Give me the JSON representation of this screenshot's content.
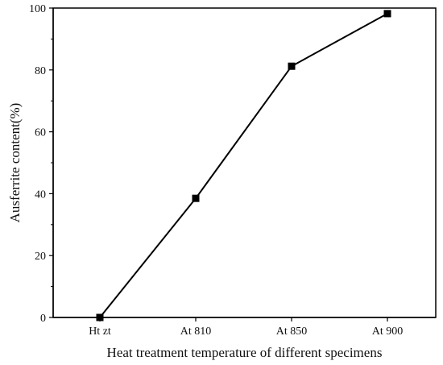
{
  "chart_data": {
    "type": "line",
    "title": "",
    "xlabel": "Heat treatment temperature of different specimens",
    "ylabel": "Ausferrite content(%)",
    "categories": [
      "Ht zt",
      "At 810",
      "At 850",
      "At 900"
    ],
    "series": [
      {
        "values": [
          0,
          38.5,
          81.2,
          98.2
        ]
      }
    ],
    "ylim": [
      0,
      100
    ],
    "yticks": [
      0,
      20,
      40,
      60,
      80,
      100
    ],
    "grid": false,
    "legend": "none",
    "colors": {
      "line": "#000000",
      "marker": "#000000",
      "axis": "#000000",
      "background": "#ffffff"
    }
  }
}
